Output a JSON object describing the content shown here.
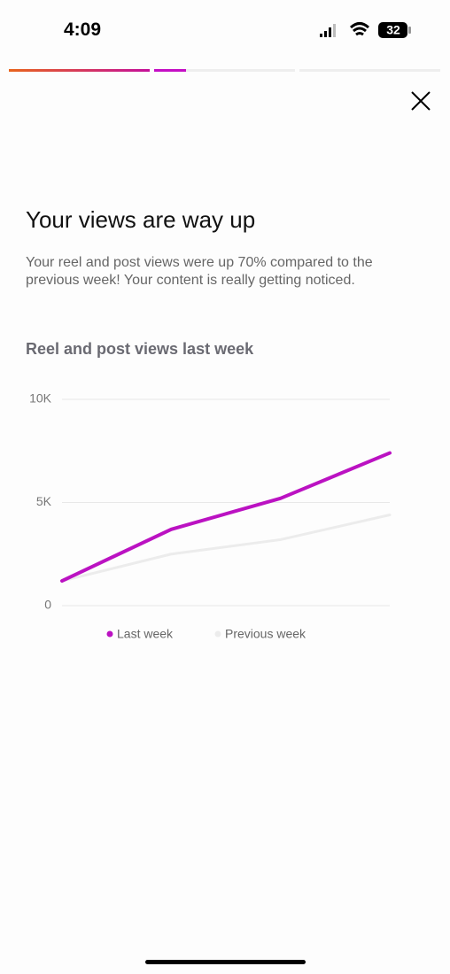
{
  "status_bar": {
    "time": "4:09",
    "battery": "32"
  },
  "header": {
    "title": "Your views are way up",
    "body": "Your reel and post views were up 70% compared to the previous week! Your content is really getting noticed."
  },
  "chart_data": {
    "type": "line",
    "title": "Reel and post views last week",
    "categories": [
      null,
      null,
      null,
      null
    ],
    "series": [
      {
        "name": "Last week",
        "color": "#bb12c2",
        "values": [
          1200,
          3700,
          5200,
          7400
        ]
      },
      {
        "name": "Previous week",
        "color": "#ececec",
        "values": [
          1200,
          2500,
          3200,
          4400
        ]
      }
    ],
    "ylim": [
      0,
      10000
    ],
    "yticks": [
      0,
      {
        "value": 5000,
        "label": "5K"
      },
      {
        "value": 10000,
        "label": "10K"
      }
    ],
    "grid": true
  }
}
